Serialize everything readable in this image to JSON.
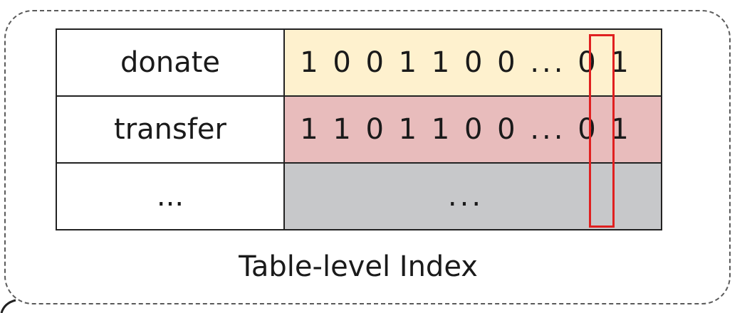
{
  "table": {
    "rows": [
      {
        "key": "donate",
        "bits": "1 0 0 1 1 0 0 ... 0 1"
      },
      {
        "key": "transfer",
        "bits": "1 1 0 1 1 0 0 ... 0 1"
      },
      {
        "key": "...",
        "bits": "..."
      }
    ]
  },
  "caption": "Table-level Index",
  "colors": {
    "row_0_fill": "#fef1ce",
    "row_1_fill": "#e8bcbc",
    "row_2_fill": "#c7c8ca",
    "highlight": "#e02020",
    "frame_border": "#5a5a5a"
  }
}
